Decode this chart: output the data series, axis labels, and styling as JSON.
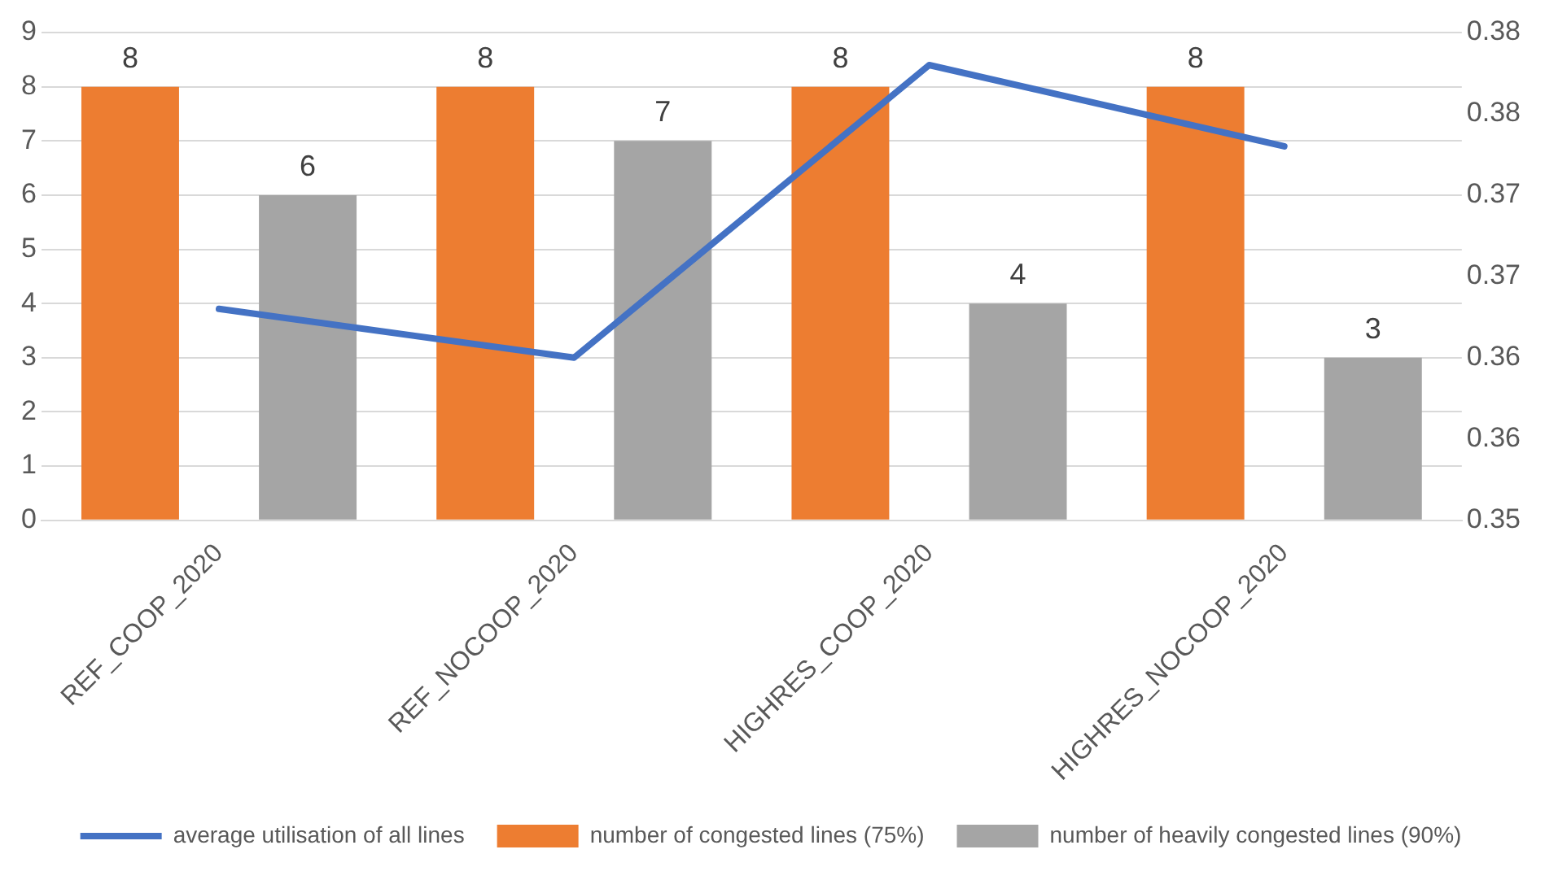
{
  "chart_data": {
    "type": "bar",
    "categories": [
      "REF_COOP_2020",
      "REF_NOCOOP_2020",
      "HIGHRES_COOP_2020",
      "HIGHRES_NOCOOP_2020"
    ],
    "series": [
      {
        "name": "number of congested lines (75%)",
        "color": "#ed7d31",
        "values": [
          8,
          8,
          8,
          8
        ],
        "value_labels": [
          "8",
          "8",
          "8",
          "8"
        ]
      },
      {
        "name": "number of heavily congested lines (90%)",
        "color": "#a5a5a5",
        "values": [
          6,
          7,
          4,
          3
        ],
        "value_labels": [
          "6",
          "7",
          "4",
          "3"
        ]
      },
      {
        "name": "average utilisation of all lines",
        "type": "line",
        "axis": "y2",
        "color": "#4472c4",
        "marker": "none",
        "values": [
          0.363,
          0.36,
          0.378,
          0.373
        ]
      }
    ],
    "ylim": [
      0,
      9
    ],
    "yticks": [
      0,
      1,
      2,
      3,
      4,
      5,
      6,
      7,
      8,
      9
    ],
    "y2lim": [
      0.35,
      0.38
    ],
    "y2ticks": [
      {
        "value": 0.35,
        "label": "0.35"
      },
      {
        "value": 0.355,
        "label": "0.36"
      },
      {
        "value": 0.36,
        "label": "0.36"
      },
      {
        "value": 0.365,
        "label": "0.37"
      },
      {
        "value": 0.37,
        "label": "0.37"
      },
      {
        "value": 0.375,
        "label": "0.38"
      },
      {
        "value": 0.38,
        "label": "0.38"
      }
    ],
    "grid": "y",
    "legend": "bottom"
  }
}
